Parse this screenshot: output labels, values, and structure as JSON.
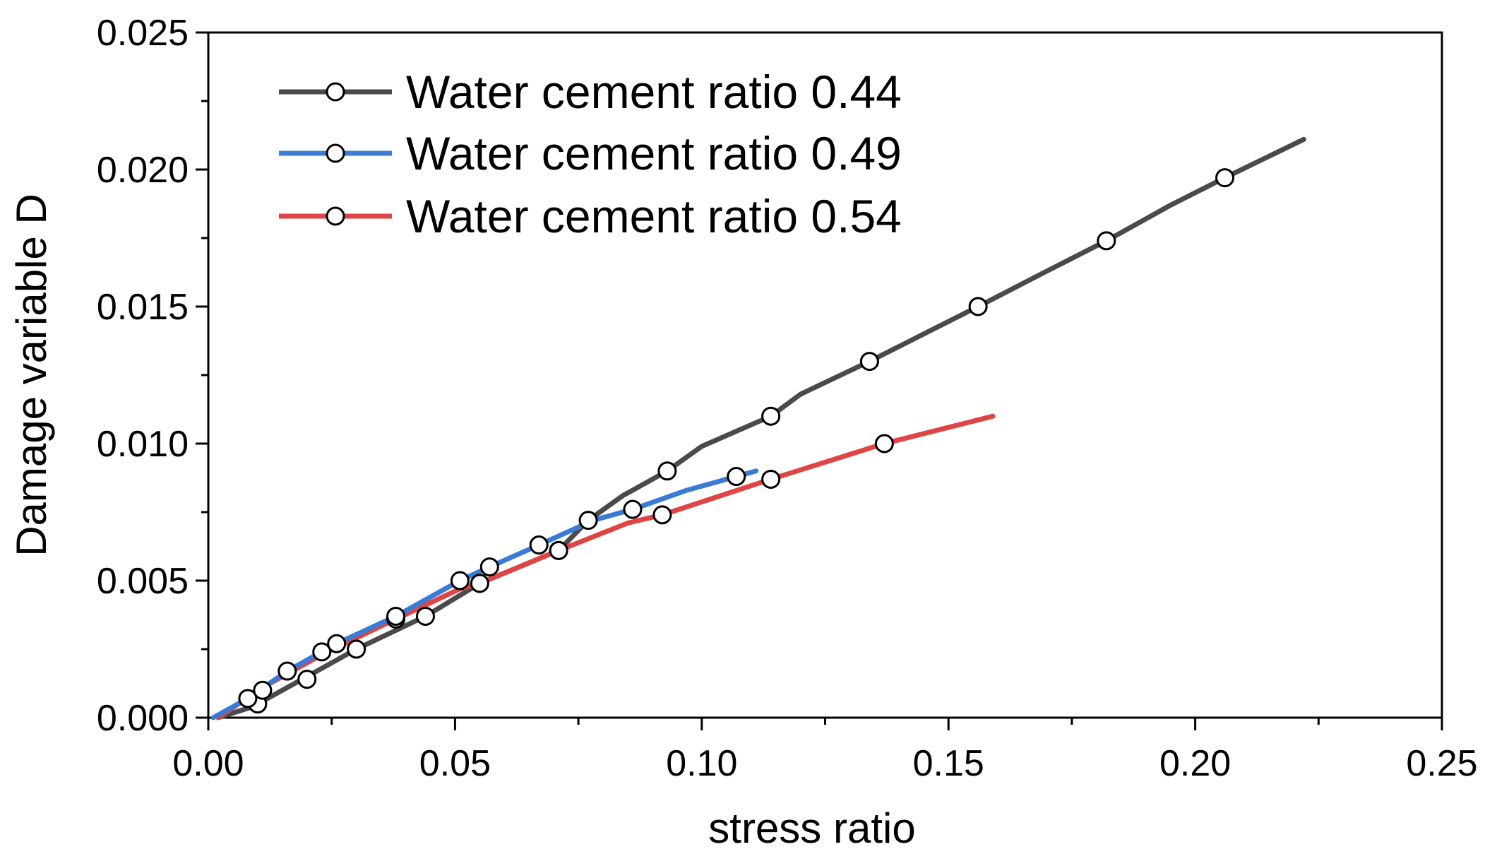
{
  "chart_data": {
    "type": "line",
    "title": "",
    "xlabel": "stress ratio",
    "ylabel": "Damage variable D",
    "xlim": [
      0,
      0.25
    ],
    "ylim": [
      0,
      0.025
    ],
    "grid": false,
    "legend_position": "top-left",
    "x_ticks": [
      "0.00",
      "0.05",
      "0.10",
      "0.15",
      "0.20",
      "0.25"
    ],
    "y_ticks": [
      "0.000",
      "0.005",
      "0.010",
      "0.015",
      "0.020",
      "0.025"
    ],
    "series": [
      {
        "name": "Water cement ratio 0.44",
        "color": "#4a4a4a",
        "line": [
          [
            0.002,
            0
          ],
          [
            0.009,
            0.0004
          ],
          [
            0.02,
            0.0015
          ],
          [
            0.03,
            0.0025
          ],
          [
            0.044,
            0.0037
          ],
          [
            0.055,
            0.0049
          ],
          [
            0.071,
            0.0061
          ],
          [
            0.077,
            0.0072
          ],
          [
            0.084,
            0.0081
          ],
          [
            0.093,
            0.009
          ],
          [
            0.1,
            0.0099
          ],
          [
            0.114,
            0.011
          ],
          [
            0.12,
            0.0118
          ],
          [
            0.134,
            0.013
          ],
          [
            0.145,
            0.014
          ],
          [
            0.156,
            0.015
          ],
          [
            0.17,
            0.0163
          ],
          [
            0.182,
            0.0174
          ],
          [
            0.195,
            0.0187
          ],
          [
            0.206,
            0.0197
          ],
          [
            0.222,
            0.0211
          ]
        ],
        "markers": [
          [
            0.01,
            0.0005
          ],
          [
            0.02,
            0.0014
          ],
          [
            0.03,
            0.0025
          ],
          [
            0.044,
            0.0037
          ],
          [
            0.055,
            0.0049
          ],
          [
            0.071,
            0.0061
          ],
          [
            0.077,
            0.0072
          ],
          [
            0.093,
            0.009
          ],
          [
            0.114,
            0.011
          ],
          [
            0.134,
            0.013
          ],
          [
            0.156,
            0.015
          ],
          [
            0.182,
            0.0174
          ],
          [
            0.206,
            0.0197
          ]
        ]
      },
      {
        "name": "Water cement ratio 0.49",
        "color": "#3a7bd5",
        "line": [
          [
            0.001,
            0
          ],
          [
            0.008,
            0.0007
          ],
          [
            0.016,
            0.0017
          ],
          [
            0.026,
            0.0027
          ],
          [
            0.038,
            0.0037
          ],
          [
            0.051,
            0.005
          ],
          [
            0.057,
            0.0055
          ],
          [
            0.067,
            0.0063
          ],
          [
            0.078,
            0.0072
          ],
          [
            0.086,
            0.0076
          ],
          [
            0.097,
            0.0083
          ],
          [
            0.111,
            0.009
          ]
        ],
        "markers": [
          [
            0.008,
            0.0007
          ],
          [
            0.011,
            0.001
          ],
          [
            0.016,
            0.0017
          ],
          [
            0.023,
            0.0024
          ],
          [
            0.026,
            0.0027
          ],
          [
            0.038,
            0.0037
          ],
          [
            0.051,
            0.005
          ],
          [
            0.057,
            0.0055
          ],
          [
            0.067,
            0.0063
          ],
          [
            0.086,
            0.0076
          ],
          [
            0.107,
            0.0088
          ]
        ]
      },
      {
        "name": "Water cement ratio 0.54",
        "color": "#e04545",
        "line": [
          [
            0.002,
            0
          ],
          [
            0.011,
            0.0011
          ],
          [
            0.023,
            0.0023
          ],
          [
            0.038,
            0.0036
          ],
          [
            0.051,
            0.0047
          ],
          [
            0.055,
            0.0049
          ],
          [
            0.071,
            0.0061
          ],
          [
            0.085,
            0.0071
          ],
          [
            0.092,
            0.0074
          ],
          [
            0.114,
            0.0087
          ],
          [
            0.137,
            0.01
          ],
          [
            0.159,
            0.011
          ]
        ],
        "markers": [
          [
            0.038,
            0.0036
          ],
          [
            0.055,
            0.0049
          ],
          [
            0.071,
            0.0061
          ],
          [
            0.092,
            0.0074
          ],
          [
            0.114,
            0.0087
          ],
          [
            0.137,
            0.01
          ]
        ]
      }
    ]
  }
}
